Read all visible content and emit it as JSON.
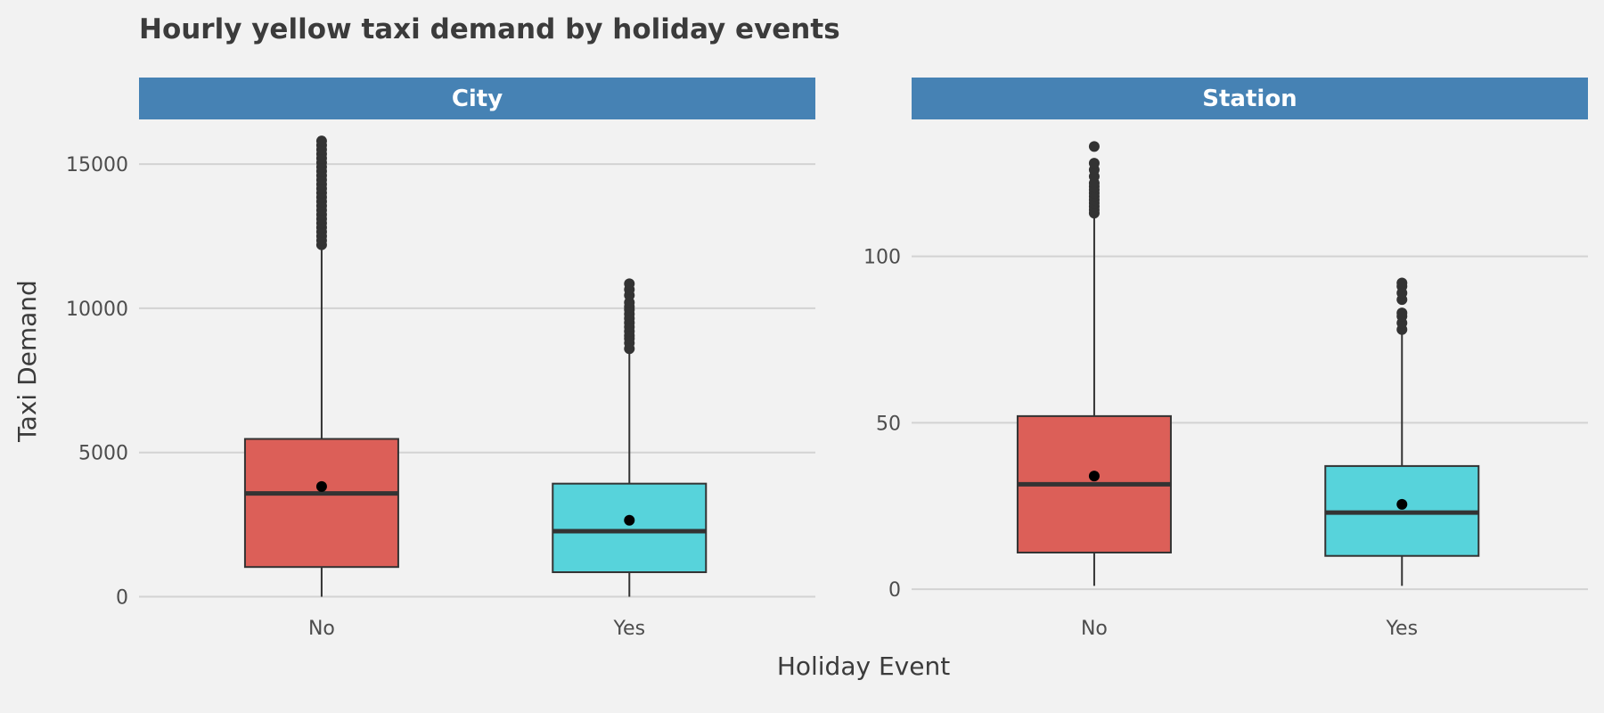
{
  "chart_data": {
    "type": "boxplot",
    "title": "Hourly yellow taxi demand by holiday events",
    "xlabel": "Holiday Event",
    "ylabel": "Taxi Demand",
    "categories": [
      "No",
      "Yes"
    ],
    "colors": {
      "No": "#dc5f58",
      "Yes": "#57d3db",
      "strip": "#4682b4",
      "outline": "#333333",
      "background": "#f2f2f2",
      "grid": "#d3d3d3"
    },
    "grid": true,
    "show_mean": true,
    "panels": [
      {
        "name": "City",
        "ylim": [
          -200,
          16300
        ],
        "yticks": [
          0,
          5000,
          10000,
          15000
        ],
        "boxes": [
          {
            "category": "No",
            "whisker_low": 0,
            "q1": 1030,
            "median": 3580,
            "q3": 5470,
            "whisker_high": 12130,
            "mean": 3820,
            "outliers": [
              12200,
              12350,
              12500,
              12650,
              12800,
              12950,
              13100,
              13250,
              13400,
              13550,
              13700,
              13850,
              14000,
              14150,
              14300,
              14450,
              14600,
              14750,
              14900,
              15050,
              15200,
              15350,
              15500,
              15650,
              15800
            ]
          },
          {
            "category": "Yes",
            "whisker_low": 0,
            "q1": 850,
            "median": 2270,
            "q3": 3920,
            "whisker_high": 8600,
            "mean": 2650,
            "outliers": [
              8600,
              8800,
              8950,
              9050,
              9200,
              9350,
              9500,
              9650,
              9800,
              9950,
              10050,
              10200,
              10450,
              10650,
              10850
            ]
          }
        ]
      },
      {
        "name": "Station",
        "ylim": [
          -4,
          139
        ],
        "yticks": [
          0,
          50,
          100
        ],
        "boxes": [
          {
            "category": "No",
            "whisker_low": 1,
            "q1": 11,
            "median": 31.5,
            "q3": 52,
            "whisker_high": 113,
            "mean": 34,
            "outliers": [
              113,
              114,
              115,
              116,
              117,
              118,
              119,
              120,
              121,
              122,
              124,
              126,
              128,
              133
            ]
          },
          {
            "category": "Yes",
            "whisker_low": 1,
            "q1": 10,
            "median": 23,
            "q3": 37,
            "whisker_high": 77,
            "mean": 25.5,
            "outliers": [
              78,
              80,
              82,
              83,
              87,
              89,
              91,
              92
            ]
          }
        ]
      }
    ]
  }
}
